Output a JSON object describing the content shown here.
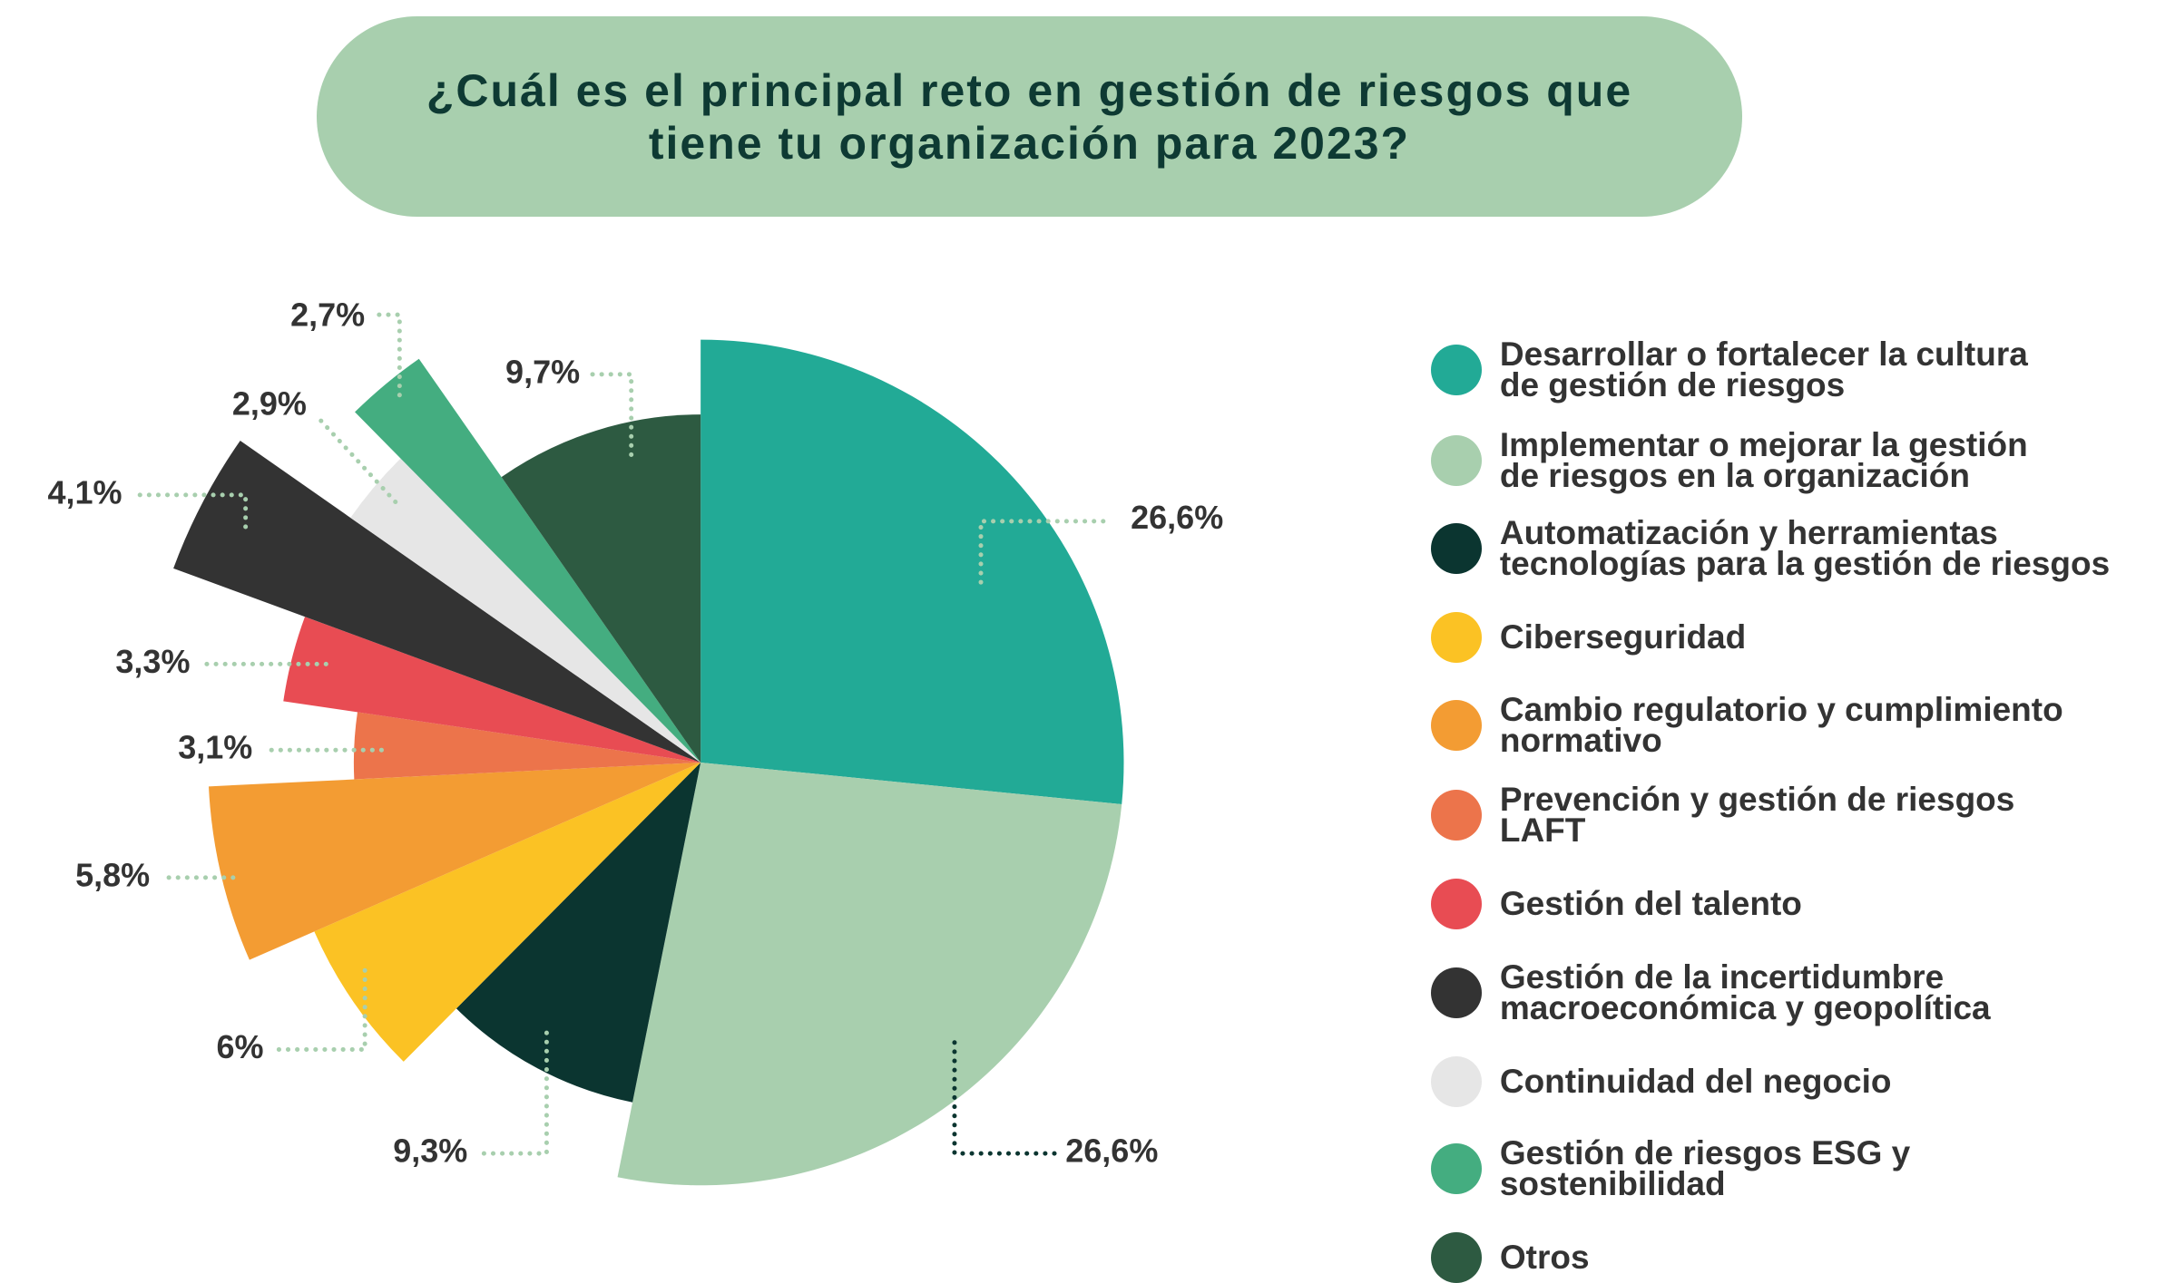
{
  "chart_data": {
    "type": "pie",
    "title": "¿Cuál es el principal reto en gestión de riesgos que\ntiene tu organización para 2023?",
    "categories": [
      "Desarrollar o fortalecer la cultura\nde gestión de riesgos",
      "Implementar o mejorar la gestión\nde riesgos en la organización",
      "Automatización y herramientas\ntecnologías para la gestión de riesgos",
      "Ciberseguridad",
      "Cambio regulatorio y cumplimiento\nnormativo",
      "Prevención y gestión de riesgos\nLAFT",
      "Gestión del talento",
      "Gestión de la incertidumbre\nmacroeconómica y geopolítica",
      "Continuidad del negocio",
      "Gestión de riesgos ESG y\nsostenibilidad",
      "Otros"
    ],
    "values": [
      26.6,
      26.6,
      9.3,
      6,
      5.8,
      3.1,
      3.3,
      4.1,
      2.9,
      2.7,
      9.7
    ],
    "value_labels": [
      "26,6%",
      "26,6%",
      "9,3%",
      "6%",
      "5,8%",
      "3,1%",
      "3,3%",
      "4,1%",
      "2,9%",
      "2,7%",
      "9,7%"
    ],
    "colors": [
      "#22aa96",
      "#a8cfae",
      "#0b3530",
      "#fbc224",
      "#f39c33",
      "#ec744b",
      "#e84c53",
      "#333333",
      "#e6e6e6",
      "#44ad80",
      "#2d5a41"
    ]
  }
}
